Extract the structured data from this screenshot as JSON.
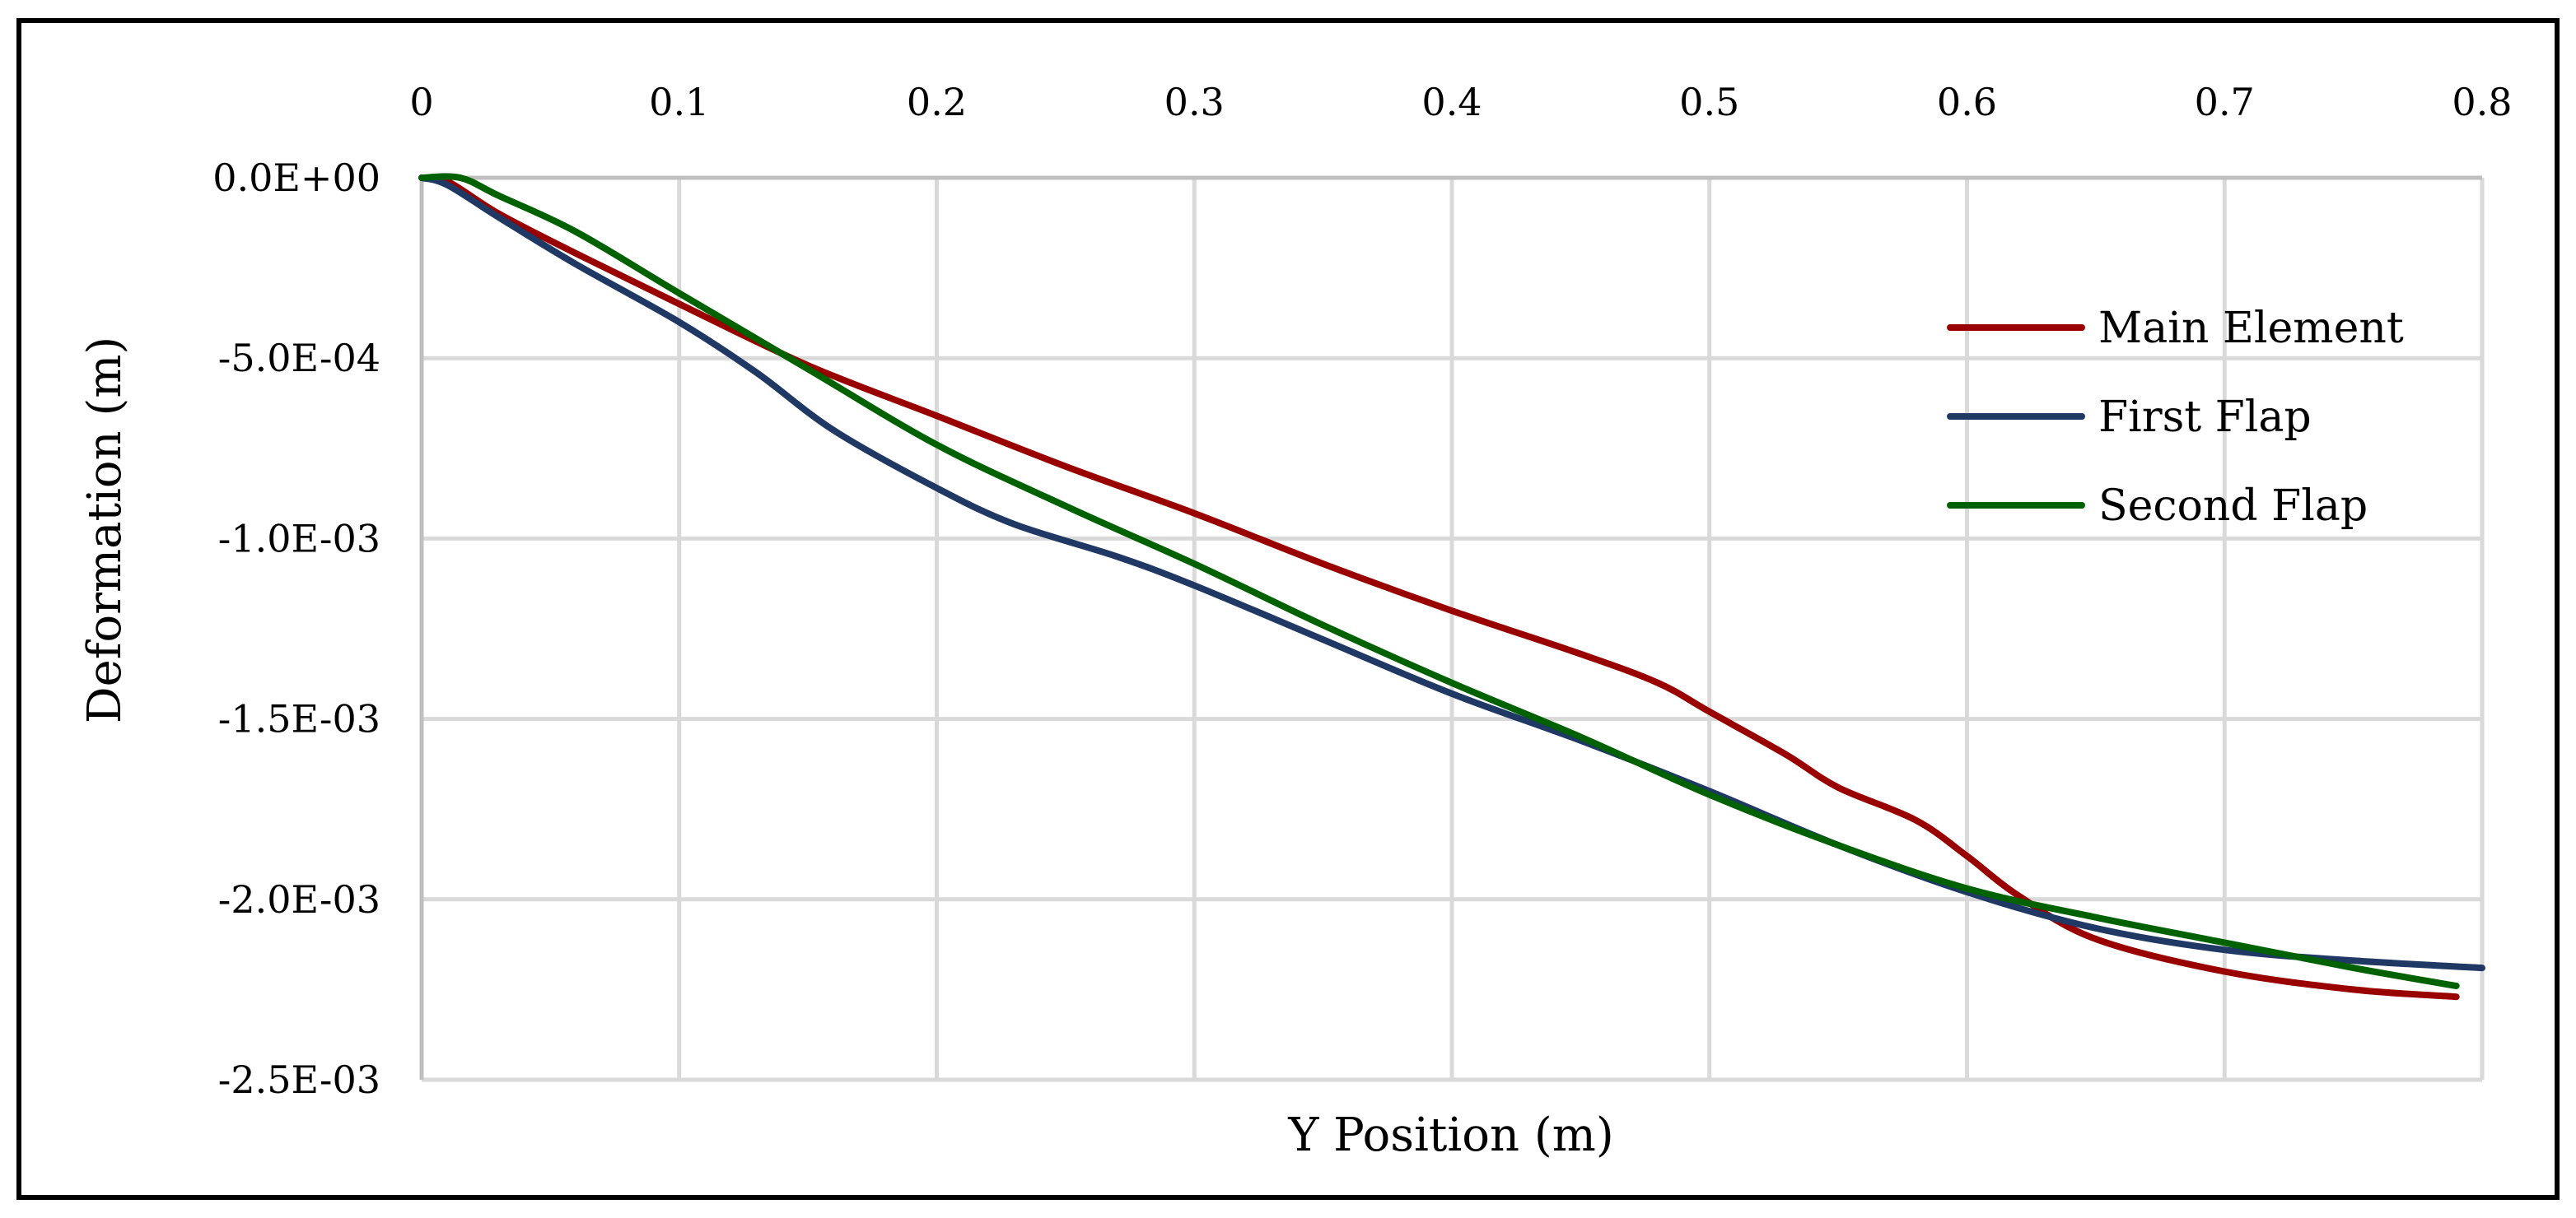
{
  "chart_data": {
    "type": "line",
    "title": "",
    "xlabel": "Y Position (m)",
    "ylabel": "Deformation (m)",
    "xlim": [
      0,
      0.8
    ],
    "ylim": [
      -0.0025,
      0
    ],
    "x_axis_position": "top",
    "grid": true,
    "legend_position": "top-right",
    "x_ticks": [
      {
        "value": 0,
        "label": "0"
      },
      {
        "value": 0.1,
        "label": "0.1"
      },
      {
        "value": 0.2,
        "label": "0.2"
      },
      {
        "value": 0.3,
        "label": "0.3"
      },
      {
        "value": 0.4,
        "label": "0.4"
      },
      {
        "value": 0.5,
        "label": "0.5"
      },
      {
        "value": 0.6,
        "label": "0.6"
      },
      {
        "value": 0.7,
        "label": "0.7"
      },
      {
        "value": 0.8,
        "label": "0.8"
      }
    ],
    "y_ticks": [
      {
        "value": 0,
        "label": "0.0E+00"
      },
      {
        "value": -0.0005,
        "label": "-5.0E-04"
      },
      {
        "value": -0.001,
        "label": "-1.0E-03"
      },
      {
        "value": -0.0015,
        "label": "-1.5E-03"
      },
      {
        "value": -0.002,
        "label": "-2.0E-03"
      },
      {
        "value": -0.0025,
        "label": "-2.5E-03"
      }
    ],
    "series": [
      {
        "name": "Main Element",
        "color": "#990000",
        "x": [
          0,
          0.01,
          0.03,
          0.06,
          0.1,
          0.15,
          0.2,
          0.25,
          0.3,
          0.35,
          0.4,
          0.45,
          0.48,
          0.5,
          0.53,
          0.55,
          0.58,
          0.6,
          0.62,
          0.65,
          0.7,
          0.75,
          0.79
        ],
        "y": [
          0,
          -1e-05,
          -0.0001,
          -0.00021,
          -0.00035,
          -0.00052,
          -0.00066,
          -0.0008,
          -0.00093,
          -0.00107,
          -0.0012,
          -0.00132,
          -0.0014,
          -0.00148,
          -0.0016,
          -0.00169,
          -0.00178,
          -0.00188,
          -0.00199,
          -0.00211,
          -0.0022,
          -0.00225,
          -0.00227
        ]
      },
      {
        "name": "First Flap",
        "color": "#1f3864",
        "x": [
          0,
          0.01,
          0.03,
          0.06,
          0.1,
          0.13,
          0.16,
          0.2,
          0.23,
          0.27,
          0.3,
          0.35,
          0.4,
          0.45,
          0.5,
          0.55,
          0.6,
          0.65,
          0.7,
          0.75,
          0.8
        ],
        "y": [
          0,
          -2e-05,
          -0.00011,
          -0.00024,
          -0.0004,
          -0.00054,
          -0.0007,
          -0.00086,
          -0.00096,
          -0.00105,
          -0.00113,
          -0.00128,
          -0.00143,
          -0.00156,
          -0.0017,
          -0.00185,
          -0.00198,
          -0.00208,
          -0.00214,
          -0.00217,
          -0.00219
        ]
      },
      {
        "name": "Second Flap",
        "color": "#006100",
        "x": [
          0,
          0.015,
          0.03,
          0.06,
          0.1,
          0.15,
          0.2,
          0.25,
          0.3,
          0.35,
          0.4,
          0.45,
          0.5,
          0.55,
          0.6,
          0.65,
          0.7,
          0.75,
          0.79
        ],
        "y": [
          0,
          0,
          -5e-05,
          -0.00015,
          -0.00032,
          -0.00053,
          -0.00074,
          -0.00091,
          -0.00107,
          -0.00124,
          -0.0014,
          -0.00155,
          -0.00171,
          -0.00185,
          -0.00197,
          -0.00205,
          -0.00212,
          -0.00219,
          -0.00224
        ]
      }
    ]
  }
}
